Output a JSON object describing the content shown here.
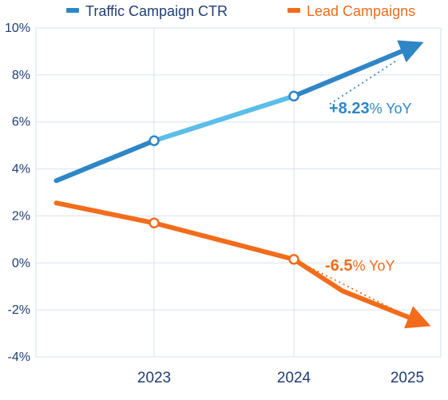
{
  "chart_data": {
    "type": "line",
    "title": "",
    "xlabel": "",
    "ylabel": "",
    "x": [
      "2023",
      "2024",
      "2025"
    ],
    "ylim": [
      -4,
      10
    ],
    "yticks": [
      "-4%",
      "-2%",
      "0%",
      "2%",
      "4%",
      "6%",
      "8%",
      "10%"
    ],
    "grid": true,
    "legend_position": "top",
    "series": [
      {
        "name": "Traffic Campaign CTR",
        "color": "#2f86c6",
        "color_light": "#5bbde8",
        "points": [
          {
            "x": "2022.3",
            "y": 3.5
          },
          {
            "x": "2023",
            "y": 5.2
          },
          {
            "x": "2024",
            "y": 7.1
          },
          {
            "x": "2024.85",
            "y": 9.2
          }
        ],
        "annotation": {
          "value": "+8.23",
          "unit": "%",
          "suffix": " YoY"
        }
      },
      {
        "name": "Lead Campaigns",
        "color": "#f26c1b",
        "points": [
          {
            "x": "2022.3",
            "y": 2.55
          },
          {
            "x": "2023",
            "y": 1.7
          },
          {
            "x": "2024",
            "y": 0.15
          },
          {
            "x": "2024.35",
            "y": -1.2
          },
          {
            "x": "2024.9",
            "y": -2.5
          }
        ],
        "annotation": {
          "value": "-6.5",
          "unit": "%",
          "suffix": " YoY"
        }
      }
    ]
  }
}
